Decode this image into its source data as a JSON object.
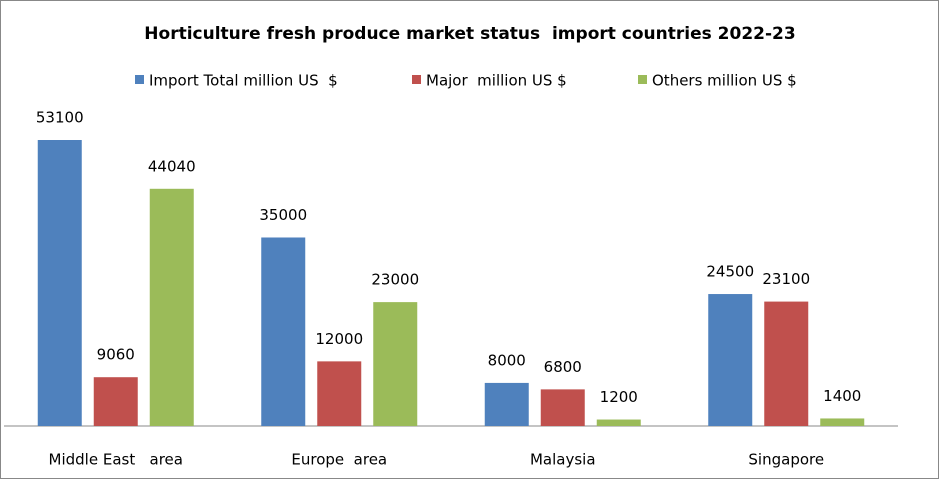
{
  "chart_data": {
    "type": "bar",
    "title": "Horticulture fresh produce market status  import countries 2022-23",
    "categories": [
      "Middle East   area",
      "Europe  area",
      "Malaysia",
      "Singapore"
    ],
    "series": [
      {
        "name": "Import Total million US  $",
        "color": "#4f81bd",
        "values": [
          53100,
          35000,
          8000,
          24500
        ]
      },
      {
        "name": "Major  million US $",
        "color": "#c0504d",
        "values": [
          9060,
          12000,
          6800,
          23100
        ]
      },
      {
        "name": "Others million US $",
        "color": "#9bbb59",
        "values": [
          44040,
          23000,
          1200,
          1400
        ]
      }
    ],
    "legend": "top"
  }
}
